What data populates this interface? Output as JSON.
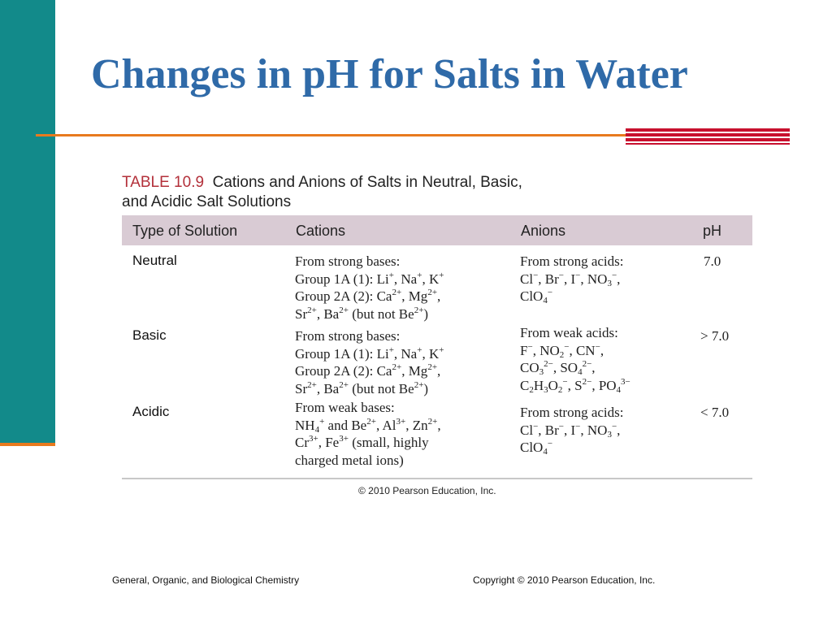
{
  "slide": {
    "title": "Changes in pH for Salts in Water"
  },
  "table": {
    "label": "TABLE 10.9",
    "caption_line1": "Cations and Anions of Salts in Neutral, Basic,",
    "caption_line2": "and Acidic Salt Solutions",
    "headers": [
      "Type of Solution",
      "Cations",
      "Anions",
      "pH"
    ],
    "rows": [
      {
        "type": "Neutral",
        "cations": [
          "From strong bases:",
          "Group 1A (1): Li+, Na+, K+",
          "Group 2A (2): Ca2+, Mg2+,",
          "Sr2+, Ba2+ (but not Be2+)"
        ],
        "anions": [
          "From strong acids:",
          "Cl−, Br−, I−, NO3−,",
          "ClO4−"
        ],
        "ph": "7.0"
      },
      {
        "type": "Basic",
        "cations": [
          "From strong bases:",
          "Group 1A (1): Li+, Na+, K+",
          "Group 2A (2): Ca2+, Mg2+,",
          "Sr2+, Ba2+ (but not Be2+)"
        ],
        "anions": [
          "From weak acids:",
          "F−, NO2−, CN−,",
          "CO32−, SO42−,",
          "C2H3O2−, S2−, PO43−"
        ],
        "ph": "> 7.0"
      },
      {
        "type": "Acidic",
        "cations": [
          "From weak bases:",
          "NH4+ and Be2+, Al3+, Zn2+,",
          "Cr3+, Fe3+ (small, highly",
          "charged metal ions)"
        ],
        "anions": [
          "From strong acids:",
          "Cl−, Br−, I−, NO3−,",
          "ClO4−"
        ],
        "ph": "< 7.0"
      }
    ],
    "credit": "© 2010 Pearson Education, Inc."
  },
  "footer": {
    "left": "General, Organic, and Biological Chemistry",
    "right": "Copyright © 2010 Pearson Education, Inc."
  },
  "colors": {
    "title": "#2f6aa8",
    "left_bar": "#128a8a",
    "accent_orange": "#e87a1e",
    "accent_red": "#c8102e",
    "header_bg": "#d9cbd4",
    "table_label": "#b3303a"
  }
}
